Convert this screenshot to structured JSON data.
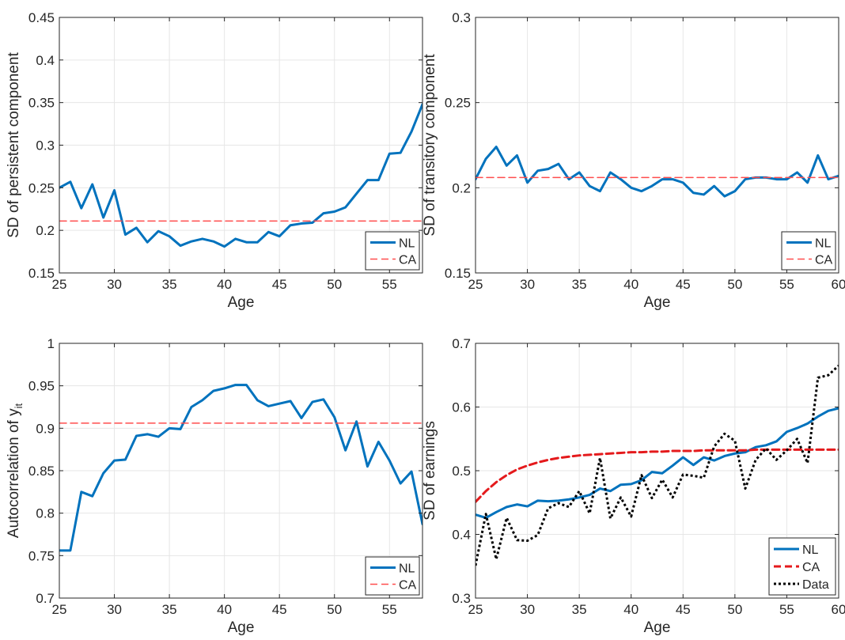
{
  "chart_data": [
    {
      "type": "line",
      "xlabel": "Age",
      "ylabel": "SD of persistent component",
      "xlim": [
        25,
        58
      ],
      "ylim": [
        0.15,
        0.45
      ],
      "xticks": [
        25,
        30,
        35,
        40,
        45,
        50,
        55
      ],
      "xtick_labels": [
        "25",
        "30",
        "35",
        "40",
        "45",
        "50",
        "55"
      ],
      "yticks": [
        0.15,
        0.2,
        0.25,
        0.3,
        0.35,
        0.4,
        0.45
      ],
      "ytick_labels": [
        "0.15",
        "0.2",
        "0.25",
        "0.3",
        "0.35",
        "0.4",
        "0.45"
      ],
      "grid": true,
      "legend": "bottom-right",
      "x": [
        25,
        26,
        27,
        28,
        29,
        30,
        31,
        32,
        33,
        34,
        35,
        36,
        37,
        38,
        39,
        40,
        41,
        42,
        43,
        44,
        45,
        46,
        47,
        48,
        49,
        50,
        51,
        52,
        53,
        54,
        55,
        56,
        57,
        58
      ],
      "series": [
        {
          "name": "NL",
          "color": "#0072BD",
          "style": "solid",
          "width": 3,
          "values": [
            0.25,
            0.257,
            0.226,
            0.254,
            0.215,
            0.247,
            0.195,
            0.203,
            0.186,
            0.199,
            0.193,
            0.182,
            0.187,
            0.19,
            0.187,
            0.181,
            0.19,
            0.186,
            0.186,
            0.198,
            0.193,
            0.206,
            0.208,
            0.209,
            0.22,
            0.222,
            0.227,
            0.243,
            0.259,
            0.259,
            0.29,
            0.291,
            0.316,
            0.348
          ]
        },
        {
          "name": "CA",
          "color": "#FF4D4D",
          "style": "dashed",
          "width": 1.5,
          "values": [
            0.211,
            0.211,
            0.211,
            0.211,
            0.211,
            0.211,
            0.211,
            0.211,
            0.211,
            0.211,
            0.211,
            0.211,
            0.211,
            0.211,
            0.211,
            0.211,
            0.211,
            0.211,
            0.211,
            0.211,
            0.211,
            0.211,
            0.211,
            0.211,
            0.211,
            0.211,
            0.211,
            0.211,
            0.211,
            0.211,
            0.211,
            0.211,
            0.211,
            0.211
          ]
        }
      ]
    },
    {
      "type": "line",
      "xlabel": "Age",
      "ylabel": "SD of transitory component",
      "xlim": [
        25,
        60
      ],
      "ylim": [
        0.15,
        0.3
      ],
      "xticks": [
        25,
        30,
        35,
        40,
        45,
        50,
        55,
        60
      ],
      "xtick_labels": [
        "25",
        "30",
        "35",
        "40",
        "45",
        "50",
        "55",
        "60"
      ],
      "yticks": [
        0.15,
        0.2,
        0.25,
        0.3
      ],
      "ytick_labels": [
        "0.15",
        "0.2",
        "0.25",
        "0.3"
      ],
      "grid": true,
      "legend": "bottom-right",
      "x": [
        25,
        26,
        27,
        28,
        29,
        30,
        31,
        32,
        33,
        34,
        35,
        36,
        37,
        38,
        39,
        40,
        41,
        42,
        43,
        44,
        45,
        46,
        47,
        48,
        49,
        50,
        51,
        52,
        53,
        54,
        55,
        56,
        57,
        58,
        59,
        60
      ],
      "series": [
        {
          "name": "NL",
          "color": "#0072BD",
          "style": "solid",
          "width": 3,
          "values": [
            0.205,
            0.217,
            0.224,
            0.213,
            0.219,
            0.203,
            0.21,
            0.211,
            0.214,
            0.205,
            0.209,
            0.201,
            0.198,
            0.209,
            0.205,
            0.2,
            0.198,
            0.201,
            0.205,
            0.205,
            0.203,
            0.197,
            0.196,
            0.201,
            0.195,
            0.198,
            0.205,
            0.206,
            0.206,
            0.205,
            0.205,
            0.209,
            0.203,
            0.219,
            0.205,
            0.207
          ]
        },
        {
          "name": "CA",
          "color": "#FF4D4D",
          "style": "dashed",
          "width": 1.5,
          "values": [
            0.206,
            0.206,
            0.206,
            0.206,
            0.206,
            0.206,
            0.206,
            0.206,
            0.206,
            0.206,
            0.206,
            0.206,
            0.206,
            0.206,
            0.206,
            0.206,
            0.206,
            0.206,
            0.206,
            0.206,
            0.206,
            0.206,
            0.206,
            0.206,
            0.206,
            0.206,
            0.206,
            0.206,
            0.206,
            0.206,
            0.206,
            0.206,
            0.206,
            0.206,
            0.206,
            0.206
          ]
        }
      ]
    },
    {
      "type": "line",
      "xlabel": "Age",
      "ylabel": "Autocorrelation of y",
      "ylabel_sub": "it",
      "xlim": [
        25,
        58
      ],
      "ylim": [
        0.7,
        1.0
      ],
      "xticks": [
        25,
        30,
        35,
        40,
        45,
        50,
        55
      ],
      "xtick_labels": [
        "25",
        "30",
        "35",
        "40",
        "45",
        "50",
        "55"
      ],
      "yticks": [
        0.7,
        0.75,
        0.8,
        0.85,
        0.9,
        0.95,
        1.0
      ],
      "ytick_labels": [
        "0.7",
        "0.75",
        "0.8",
        "0.85",
        "0.9",
        "0.95",
        "1"
      ],
      "grid": true,
      "legend": "bottom-right",
      "x": [
        25,
        26,
        27,
        28,
        29,
        30,
        31,
        32,
        33,
        34,
        35,
        36,
        37,
        38,
        39,
        40,
        41,
        42,
        43,
        44,
        45,
        46,
        47,
        48,
        49,
        50,
        51,
        52,
        53,
        54,
        55,
        56,
        57,
        58
      ],
      "series": [
        {
          "name": "NL",
          "color": "#0072BD",
          "style": "solid",
          "width": 3,
          "values": [
            0.756,
            0.756,
            0.825,
            0.82,
            0.847,
            0.862,
            0.863,
            0.891,
            0.893,
            0.89,
            0.9,
            0.899,
            0.925,
            0.933,
            0.944,
            0.947,
            0.951,
            0.951,
            0.933,
            0.926,
            0.929,
            0.932,
            0.912,
            0.931,
            0.934,
            0.913,
            0.874,
            0.908,
            0.855,
            0.884,
            0.862,
            0.835,
            0.849,
            0.787
          ]
        },
        {
          "name": "CA",
          "color": "#FF4D4D",
          "style": "dashed",
          "width": 1.5,
          "values": [
            0.906,
            0.906,
            0.906,
            0.906,
            0.906,
            0.906,
            0.906,
            0.906,
            0.906,
            0.906,
            0.906,
            0.906,
            0.906,
            0.906,
            0.906,
            0.906,
            0.906,
            0.906,
            0.906,
            0.906,
            0.906,
            0.906,
            0.906,
            0.906,
            0.906,
            0.906,
            0.906,
            0.906,
            0.906,
            0.906,
            0.906,
            0.906,
            0.906,
            0.906
          ]
        }
      ]
    },
    {
      "type": "line",
      "xlabel": "Age",
      "ylabel": "SD of earnings",
      "xlim": [
        25,
        60
      ],
      "ylim": [
        0.3,
        0.7
      ],
      "xticks": [
        25,
        30,
        35,
        40,
        45,
        50,
        55,
        60
      ],
      "xtick_labels": [
        "25",
        "30",
        "35",
        "40",
        "45",
        "50",
        "55",
        "60"
      ],
      "yticks": [
        0.3,
        0.4,
        0.5,
        0.6,
        0.7
      ],
      "ytick_labels": [
        "0.3",
        "0.4",
        "0.5",
        "0.6",
        "0.7"
      ],
      "grid": true,
      "legend": "bottom-right",
      "x": [
        25,
        26,
        27,
        28,
        29,
        30,
        31,
        32,
        33,
        34,
        35,
        36,
        37,
        38,
        39,
        40,
        41,
        42,
        43,
        44,
        45,
        46,
        47,
        48,
        49,
        50,
        51,
        52,
        53,
        54,
        55,
        56,
        57,
        58,
        59,
        60
      ],
      "series": [
        {
          "name": "NL",
          "color": "#0072BD",
          "style": "solid",
          "width": 3,
          "values": [
            0.431,
            0.426,
            0.435,
            0.443,
            0.447,
            0.444,
            0.453,
            0.452,
            0.453,
            0.455,
            0.458,
            0.462,
            0.472,
            0.468,
            0.478,
            0.479,
            0.485,
            0.498,
            0.496,
            0.508,
            0.521,
            0.509,
            0.521,
            0.516,
            0.523,
            0.527,
            0.529,
            0.537,
            0.54,
            0.546,
            0.561,
            0.567,
            0.574,
            0.585,
            0.594,
            0.598
          ]
        },
        {
          "name": "CA",
          "color": "#E41A1C",
          "style": "dashed",
          "width": 3,
          "values": [
            0.451,
            0.468,
            0.482,
            0.493,
            0.502,
            0.508,
            0.513,
            0.517,
            0.52,
            0.522,
            0.524,
            0.525,
            0.526,
            0.527,
            0.528,
            0.529,
            0.529,
            0.53,
            0.53,
            0.531,
            0.531,
            0.531,
            0.532,
            0.532,
            0.532,
            0.532,
            0.532,
            0.533,
            0.533,
            0.533,
            0.533,
            0.533,
            0.533,
            0.533,
            0.533,
            0.533
          ]
        },
        {
          "name": "Data",
          "color": "#000000",
          "style": "dotted",
          "width": 3,
          "values": [
            0.351,
            0.432,
            0.361,
            0.426,
            0.391,
            0.39,
            0.399,
            0.441,
            0.449,
            0.443,
            0.468,
            0.433,
            0.52,
            0.425,
            0.458,
            0.428,
            0.493,
            0.457,
            0.486,
            0.458,
            0.494,
            0.492,
            0.489,
            0.538,
            0.558,
            0.547,
            0.472,
            0.517,
            0.535,
            0.517,
            0.532,
            0.55,
            0.512,
            0.646,
            0.65,
            0.665
          ]
        }
      ]
    }
  ]
}
